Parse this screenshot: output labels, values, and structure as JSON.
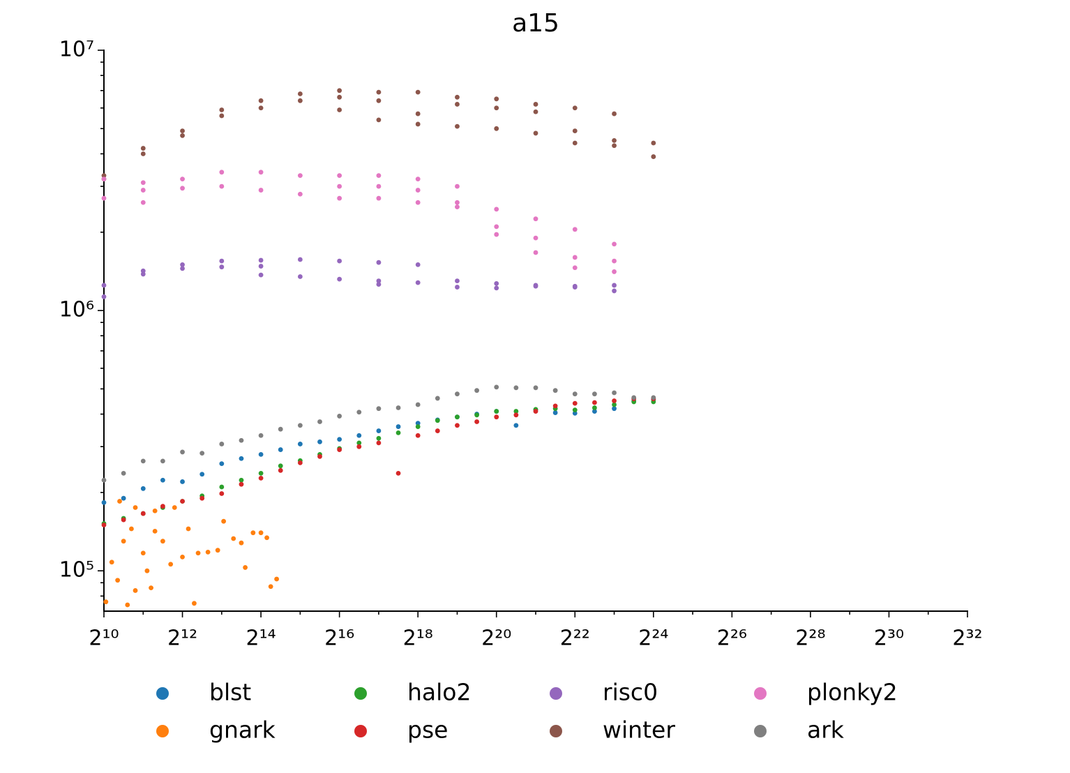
{
  "chart_data": {
    "type": "scatter",
    "title": "a15",
    "xscale": "log2",
    "yscale": "log10",
    "xlim": [
      1024,
      4294967296
    ],
    "ylim": [
      70000,
      10000000
    ],
    "xticks": [
      {
        "value": 1024,
        "label": "2¹⁰"
      },
      {
        "value": 4096,
        "label": "2¹²"
      },
      {
        "value": 16384,
        "label": "2¹⁴"
      },
      {
        "value": 65536,
        "label": "2¹⁶"
      },
      {
        "value": 262144,
        "label": "2¹⁸"
      },
      {
        "value": 1048576,
        "label": "2²⁰"
      },
      {
        "value": 4194304,
        "label": "2²²"
      },
      {
        "value": 16777216,
        "label": "2²⁴"
      },
      {
        "value": 67108864,
        "label": "2²⁶"
      },
      {
        "value": 268435456,
        "label": "2²⁸"
      },
      {
        "value": 1073741824,
        "label": "2³⁰"
      },
      {
        "value": 4294967296,
        "label": "2³²"
      }
    ],
    "xminorticks": [
      2048,
      8192,
      32768,
      131072,
      524288,
      2097152,
      8388608,
      33554432,
      134217728,
      536870912,
      2147483648
    ],
    "yticks": [
      {
        "value": 100000,
        "label": "10⁵"
      },
      {
        "value": 1000000,
        "label": "10⁶"
      },
      {
        "value": 10000000,
        "label": "10⁷"
      }
    ],
    "yminorticks": [
      80000,
      90000,
      200000,
      300000,
      400000,
      500000,
      600000,
      700000,
      800000,
      900000,
      2000000,
      3000000,
      4000000,
      5000000,
      6000000,
      7000000,
      8000000,
      9000000
    ],
    "series": [
      {
        "name": "blst",
        "color": "#1f77b4",
        "x": [
          1024,
          1448,
          2048,
          2896,
          4096,
          5793,
          8192,
          11585,
          16384,
          23170,
          32768,
          46341,
          65536,
          92682,
          131072,
          185364,
          262144,
          370728,
          524288,
          741455,
          1048576,
          1482910,
          2097152,
          2965821,
          4194304,
          5931642,
          8388608,
          11863283,
          16777216
        ],
        "values": [
          183000,
          190000,
          207000,
          223000,
          220000,
          235000,
          258000,
          270000,
          280000,
          292000,
          307000,
          313000,
          320000,
          331000,
          345000,
          358000,
          369000,
          380000,
          390000,
          400000,
          410000,
          362000,
          415000,
          405000,
          403000,
          410000,
          420000,
          450000,
          455000
        ]
      },
      {
        "name": "gnark",
        "color": "#ff7f0e",
        "x": [
          1060,
          1176,
          1304,
          1448,
          1552,
          1664,
          1783,
          2048,
          2195,
          2353,
          2521,
          2896,
          3327,
          4096,
          4547,
          5042,
          5405,
          6427,
          7643,
          8479,
          10086,
          11585,
          12417,
          14263,
          16384,
          18187,
          19484,
          21619,
          1351,
          1783,
          2521,
          3565
        ],
        "values": [
          76000,
          108000,
          92000,
          130000,
          74000,
          145000,
          84000,
          117000,
          100000,
          86000,
          142000,
          130000,
          106000,
          113000,
          145000,
          75000,
          117000,
          118000,
          120000,
          155000,
          133000,
          128000,
          103000,
          140000,
          140000,
          134000,
          87000,
          93000,
          185000,
          175000,
          170000,
          175000
        ]
      },
      {
        "name": "halo2",
        "color": "#2ca02c",
        "x": [
          1024,
          1448,
          2048,
          2896,
          4096,
          5793,
          8192,
          11585,
          16384,
          23170,
          32768,
          46341,
          65536,
          92682,
          131072,
          185364,
          262144,
          370728,
          524288,
          741455,
          1048576,
          1482910,
          2097152,
          2965821,
          4194304,
          5931642,
          8388608,
          11863283,
          16777216
        ],
        "values": [
          152000,
          159000,
          166000,
          175000,
          185000,
          194000,
          210000,
          223000,
          237000,
          253000,
          265000,
          280000,
          295000,
          310000,
          323000,
          339000,
          358000,
          378000,
          390000,
          397000,
          410000,
          410000,
          417000,
          420000,
          415000,
          423000,
          435000,
          446000,
          446000
        ]
      },
      {
        "name": "pse",
        "color": "#d62728",
        "x": [
          1024,
          1448,
          2048,
          2896,
          4096,
          5793,
          8192,
          11585,
          16384,
          23170,
          32768,
          46341,
          65536,
          92682,
          131072,
          185364,
          262144,
          370728,
          524288,
          741455,
          1048576,
          1482910,
          2097152,
          2965821,
          4194304,
          5931642,
          8388608,
          11863283,
          16777216
        ],
        "values": [
          150000,
          157000,
          166000,
          177000,
          185000,
          190000,
          198000,
          215000,
          227000,
          243000,
          260000,
          275000,
          292000,
          300000,
          310000,
          237000,
          331000,
          345000,
          362000,
          374000,
          390000,
          397000,
          410000,
          430000,
          440000,
          443000,
          450000,
          458000,
          458000
        ]
      },
      {
        "name": "risc0",
        "color": "#9467bd",
        "x": [
          1024,
          1024,
          2048,
          2048,
          4096,
          4096,
          8192,
          8192,
          16384,
          16384,
          16384,
          32768,
          32768,
          65536,
          65536,
          131072,
          131072,
          131072,
          262144,
          262144,
          524288,
          524288,
          1048576,
          1048576,
          2097152,
          2097152,
          4194304,
          4194304,
          8388608,
          8388608
        ],
        "values": [
          1250000,
          1130000,
          1420000,
          1380000,
          1500000,
          1450000,
          1550000,
          1470000,
          1560000,
          1370000,
          1480000,
          1570000,
          1350000,
          1550000,
          1320000,
          1530000,
          1260000,
          1300000,
          1500000,
          1280000,
          1300000,
          1230000,
          1270000,
          1220000,
          1250000,
          1240000,
          1240000,
          1230000,
          1250000,
          1190000
        ]
      },
      {
        "name": "winter",
        "color": "#8c564b",
        "x": [
          1024,
          1024,
          2048,
          2048,
          4096,
          4096,
          8192,
          8192,
          16384,
          16384,
          32768,
          32768,
          65536,
          65536,
          65536,
          131072,
          131072,
          131072,
          262144,
          262144,
          262144,
          524288,
          524288,
          524288,
          1048576,
          1048576,
          1048576,
          2097152,
          2097152,
          2097152,
          4194304,
          4194304,
          4194304,
          8388608,
          8388608,
          8388608,
          16777216,
          16777216
        ],
        "values": [
          3300000,
          3200000,
          4200000,
          4000000,
          4900000,
          4700000,
          5900000,
          5600000,
          6400000,
          6000000,
          6800000,
          6400000,
          7000000,
          5900000,
          6600000,
          6900000,
          5400000,
          6400000,
          6900000,
          5700000,
          5200000,
          6600000,
          5100000,
          6200000,
          6500000,
          5000000,
          6000000,
          6200000,
          4800000,
          5800000,
          6000000,
          4900000,
          4400000,
          5700000,
          4500000,
          4300000,
          4400000,
          3900000
        ]
      },
      {
        "name": "plonky2",
        "color": "#e377c2",
        "x": [
          1024,
          1024,
          2048,
          2048,
          2048,
          4096,
          4096,
          8192,
          8192,
          16384,
          16384,
          32768,
          32768,
          65536,
          65536,
          65536,
          131072,
          131072,
          131072,
          262144,
          262144,
          262144,
          524288,
          524288,
          524288,
          1048576,
          1048576,
          1048576,
          2097152,
          2097152,
          2097152,
          4194304,
          4194304,
          4194304,
          8388608,
          8388608,
          8388608
        ],
        "values": [
          2700000,
          3200000,
          3100000,
          2600000,
          2900000,
          3200000,
          2950000,
          3400000,
          3000000,
          3400000,
          2900000,
          3300000,
          2800000,
          3300000,
          2700000,
          3000000,
          3300000,
          2700000,
          3000000,
          3200000,
          2600000,
          2900000,
          3000000,
          2500000,
          2600000,
          2450000,
          2100000,
          1960000,
          2250000,
          1900000,
          1670000,
          2050000,
          1600000,
          1460000,
          1800000,
          1550000,
          1410000
        ]
      },
      {
        "name": "ark",
        "color": "#7f7f7f",
        "x": [
          1024,
          1448,
          2048,
          2896,
          4096,
          5793,
          8192,
          11585,
          16384,
          23170,
          32768,
          46341,
          65536,
          92682,
          131072,
          185364,
          262144,
          370728,
          524288,
          741455,
          1048576,
          1482910,
          2097152,
          2965821,
          4194304,
          5931642,
          8388608,
          11863283,
          16777216
        ],
        "values": [
          223000,
          237000,
          264000,
          264000,
          286000,
          283000,
          307000,
          317000,
          331000,
          350000,
          362000,
          374000,
          393000,
          407000,
          420000,
          423000,
          435000,
          460000,
          478000,
          493000,
          508000,
          505000,
          505000,
          493000,
          478000,
          478000,
          483000,
          463000,
          463000
        ]
      }
    ]
  }
}
